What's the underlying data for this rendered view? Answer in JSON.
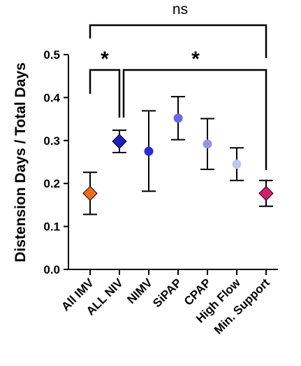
{
  "chart_data": {
    "type": "scatter",
    "ylabel": "Distension Days / Total Days",
    "xlabel": "",
    "ylim": [
      0,
      0.5
    ],
    "yticks": [
      "0.0",
      "0.1",
      "0.2",
      "0.3",
      "0.4",
      "0.5"
    ],
    "categories": [
      "All IMV",
      "ALL NIV",
      "NIMV",
      "SiPAP",
      "CPAP",
      "High Flow",
      "Min. Support"
    ],
    "points": [
      {
        "category": "All IMV",
        "value": 0.177,
        "lower": 0.128,
        "upper": 0.226,
        "marker": "diamond",
        "color": "#f26b1d"
      },
      {
        "category": "ALL NIV",
        "value": 0.298,
        "lower": 0.272,
        "upper": 0.324,
        "marker": "diamond",
        "color": "#1f1fc4"
      },
      {
        "category": "NIMV",
        "value": 0.275,
        "lower": 0.182,
        "upper": 0.369,
        "marker": "circle",
        "color": "#2b2bd6"
      },
      {
        "category": "SiPAP",
        "value": 0.352,
        "lower": 0.302,
        "upper": 0.402,
        "marker": "circle",
        "color": "#6a6ae0"
      },
      {
        "category": "CPAP",
        "value": 0.292,
        "lower": 0.233,
        "upper": 0.351,
        "marker": "circle",
        "color": "#9494e6"
      },
      {
        "category": "High Flow",
        "value": 0.245,
        "lower": 0.207,
        "upper": 0.283,
        "marker": "circle",
        "color": "#c4c4f0"
      },
      {
        "category": "Min. Support",
        "value": 0.177,
        "lower": 0.147,
        "upper": 0.207,
        "marker": "diamond",
        "color": "#d21e6e"
      }
    ],
    "annotations": [
      {
        "from": "All IMV",
        "to": "Min. Support",
        "label": "ns"
      },
      {
        "from": "All IMV",
        "to": "ALL NIV",
        "label": "*"
      },
      {
        "from": "ALL NIV",
        "to": "Min. Support",
        "label": "*"
      }
    ]
  }
}
